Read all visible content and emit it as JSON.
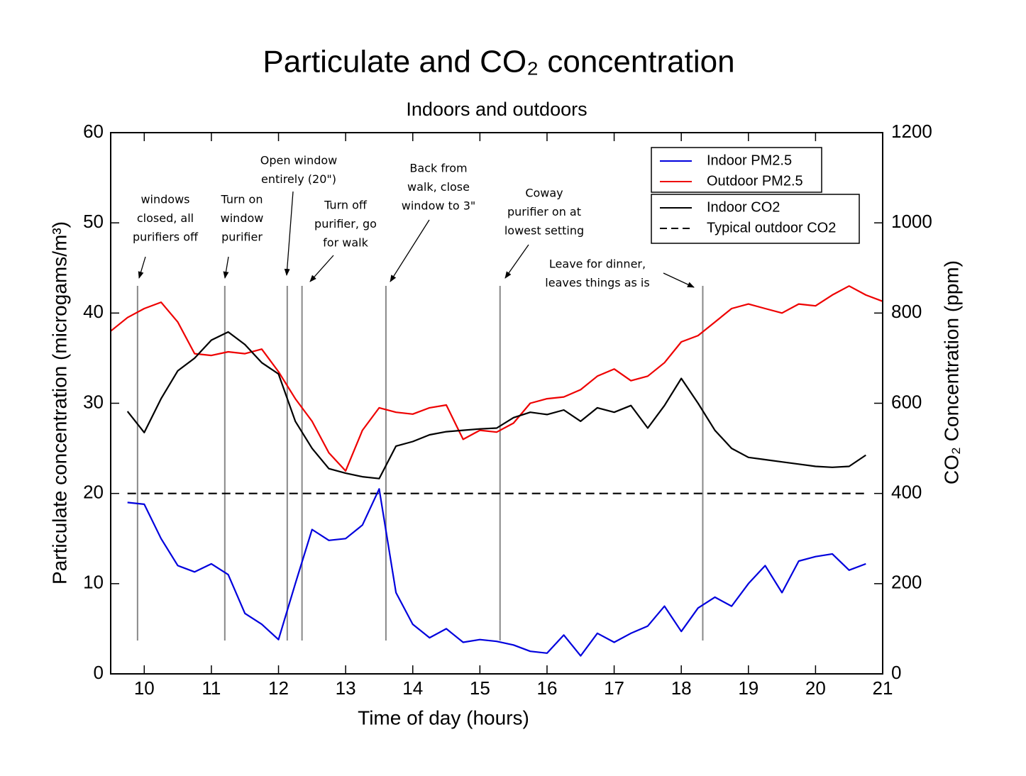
{
  "chart_data": {
    "type": "line",
    "title": "Particulate and CO₂ concentration",
    "subtitle": "Indoors and outdoors",
    "x_label": "Time of day (hours)",
    "y_label": "Particulate concentration (microgams/m³)",
    "y2_label": "CO₂ Concentration (ppm)",
    "xlim": [
      9.5,
      21
    ],
    "xticks": [
      10,
      11,
      12,
      13,
      14,
      15,
      16,
      17,
      18,
      19,
      20,
      21
    ],
    "ylim": [
      0,
      60
    ],
    "yticks": [
      0,
      10,
      20,
      30,
      40,
      50,
      60
    ],
    "y2lim": [
      0,
      1200
    ],
    "y2ticks": [
      0,
      200,
      400,
      600,
      800,
      1000,
      1200
    ],
    "x": [
      9.5,
      9.75,
      10,
      10.25,
      10.5,
      10.75,
      11,
      11.25,
      11.5,
      11.75,
      12,
      12.25,
      12.5,
      12.75,
      13,
      13.25,
      13.5,
      13.75,
      14,
      14.25,
      14.5,
      14.75,
      15,
      15.25,
      15.5,
      15.75,
      16,
      16.25,
      16.5,
      16.75,
      17,
      17.25,
      17.5,
      17.75,
      18,
      18.25,
      18.5,
      18.75,
      19,
      19.25,
      19.5,
      19.75,
      20,
      20.25,
      20.5,
      20.75,
      21
    ],
    "series": [
      {
        "name": "Indoor PM2.5",
        "color": "#0000dd",
        "values": [
          null,
          19,
          18.8,
          15,
          12,
          11.3,
          12.2,
          11,
          6.7,
          5.5,
          3.8,
          10,
          16,
          14.8,
          15,
          16.5,
          20.5,
          9,
          5.5,
          4,
          5,
          3.5,
          3.8,
          3.6,
          3.2,
          2.5,
          2.3,
          4.3,
          2,
          4.5,
          3.5,
          4.5,
          5.3,
          7.5,
          4.7,
          7.3,
          8.5,
          7.5,
          10,
          12,
          9,
          12.5,
          13,
          13.3,
          11.5,
          12.2,
          null
        ]
      },
      {
        "name": "Outdoor PM2.5",
        "color": "#ee0000",
        "values": [
          38,
          39.5,
          40.5,
          41.2,
          39,
          35.5,
          35.3,
          35.7,
          35.5,
          36,
          33.5,
          30.5,
          28,
          24.5,
          22.5,
          27,
          29.5,
          29,
          28.8,
          29.5,
          29.8,
          26,
          27,
          26.8,
          27.8,
          30,
          30.5,
          30.7,
          31.5,
          33,
          33.8,
          32.5,
          33,
          34.5,
          36.8,
          37.5,
          39,
          40.5,
          41,
          40.5,
          40,
          41,
          40.8,
          42,
          43,
          42,
          41.3
        ]
      },
      {
        "name": "Indoor CO2",
        "color": "#000000",
        "axis": "y2",
        "values": [
          null,
          582,
          535,
          610,
          672,
          700,
          740,
          758,
          730,
          690,
          665,
          560,
          500,
          455,
          445,
          437,
          433,
          505,
          515,
          530,
          537,
          540,
          543,
          545,
          568,
          580,
          575,
          585,
          560,
          590,
          580,
          595,
          545,
          595,
          655,
          600,
          540,
          500,
          480,
          475,
          470,
          465,
          460,
          458,
          460,
          485,
          null
        ]
      },
      {
        "name": "Typical outdoor CO2",
        "color": "#000000",
        "axis": "y2",
        "dash": true,
        "values": [
          null,
          400,
          400,
          400,
          400,
          400,
          400,
          400,
          400,
          400,
          400,
          400,
          400,
          400,
          400,
          400,
          400,
          400,
          400,
          400,
          400,
          400,
          400,
          400,
          400,
          400,
          400,
          400,
          400,
          400,
          400,
          400,
          400,
          400,
          400,
          400,
          400,
          400,
          400,
          400,
          400,
          400,
          400,
          400,
          400,
          400,
          null
        ]
      }
    ],
    "events": [
      {
        "x": 9.9,
        "label": [
          "windows",
          "closed, all",
          "purifiers off"
        ]
      },
      {
        "x": 11.2,
        "label": [
          "Turn on",
          "window",
          "purifier"
        ]
      },
      {
        "x": 12.13,
        "label": [
          "Open window",
          "entirely (20\")"
        ]
      },
      {
        "x": 12.35,
        "label": [
          "Turn off",
          "purifier, go",
          "for walk"
        ]
      },
      {
        "x": 13.6,
        "label": [
          "Back from",
          "walk, close",
          "window to 3\""
        ]
      },
      {
        "x": 15.3,
        "label": [
          "Coway",
          "purifier on at",
          "lowest setting"
        ]
      },
      {
        "x": 18.32,
        "label": [
          "Leave for dinner,",
          "leaves things as is"
        ]
      }
    ]
  }
}
